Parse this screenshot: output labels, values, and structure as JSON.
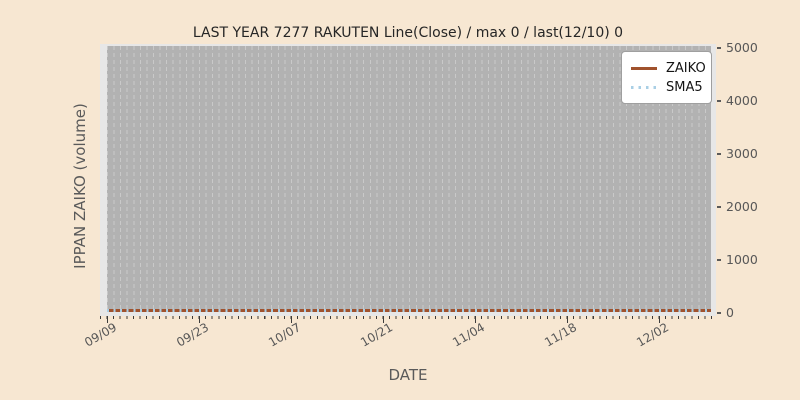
{
  "figure": {
    "title": "LAST YEAR 7277 RAKUTEN Line(Close) / max 0 / last(12/10) 0",
    "xlabel": "DATE",
    "ylabel": "IPPAN ZAIKO (volume)"
  },
  "axes": {
    "x_tick_labels": [
      "09/09",
      "09/23",
      "10/07",
      "10/21",
      "11/04",
      "11/18",
      "12/02"
    ],
    "y_tick_labels": [
      "0",
      "1000",
      "2000",
      "3000",
      "4000",
      "5000"
    ],
    "y_axis_side": "right",
    "x_tick_rotation_deg": 30
  },
  "legend": {
    "position": "upper right",
    "items": [
      {
        "label": "ZAIKO",
        "line_style": "solid",
        "color": "#A0522D"
      },
      {
        "label": "SMA5",
        "line_style": "dotted",
        "color": "#ADD8E6"
      }
    ]
  },
  "colors": {
    "figure_bg": "#F7E7D2",
    "axes_margin_bg": "#E7E7E7",
    "plot_region_bg": "#B2B2B2",
    "gridline": "#C9C9C9",
    "zaiko_line": "#A0522D",
    "sma5_line": "#ADD8E6",
    "tick_label": "#575757",
    "title_text": "#262626"
  },
  "chart_data": {
    "type": "line",
    "title": "LAST YEAR 7277 RAKUTEN Line(Close) / max 0 / last(12/10) 0",
    "xlabel": "DATE",
    "ylabel": "IPPAN ZAIKO (volume)",
    "x_range": [
      "09/09",
      "12/10"
    ],
    "x_tick_labels": [
      "09/09",
      "09/23",
      "10/07",
      "10/21",
      "11/04",
      "11/18",
      "12/02"
    ],
    "ylim": [
      0,
      5000
    ],
    "y_ticks": [
      0,
      1000,
      2000,
      3000,
      4000,
      5000
    ],
    "series": [
      {
        "name": "ZAIKO",
        "style": "solid",
        "color": "#A0522D",
        "constant_value": 0,
        "values_at_ticks": [
          0,
          0,
          0,
          0,
          0,
          0,
          0
        ]
      },
      {
        "name": "SMA5",
        "style": "dotted",
        "color": "#ADD8E6",
        "constant_value": 0,
        "values_at_ticks": [
          0,
          0,
          0,
          0,
          0,
          0,
          0
        ]
      }
    ],
    "stats_in_title": {
      "max": 0,
      "last_date": "12/10",
      "last_value": 0
    },
    "legend_position": "upper right",
    "grid": "vertical dashed per-day gridlines"
  }
}
